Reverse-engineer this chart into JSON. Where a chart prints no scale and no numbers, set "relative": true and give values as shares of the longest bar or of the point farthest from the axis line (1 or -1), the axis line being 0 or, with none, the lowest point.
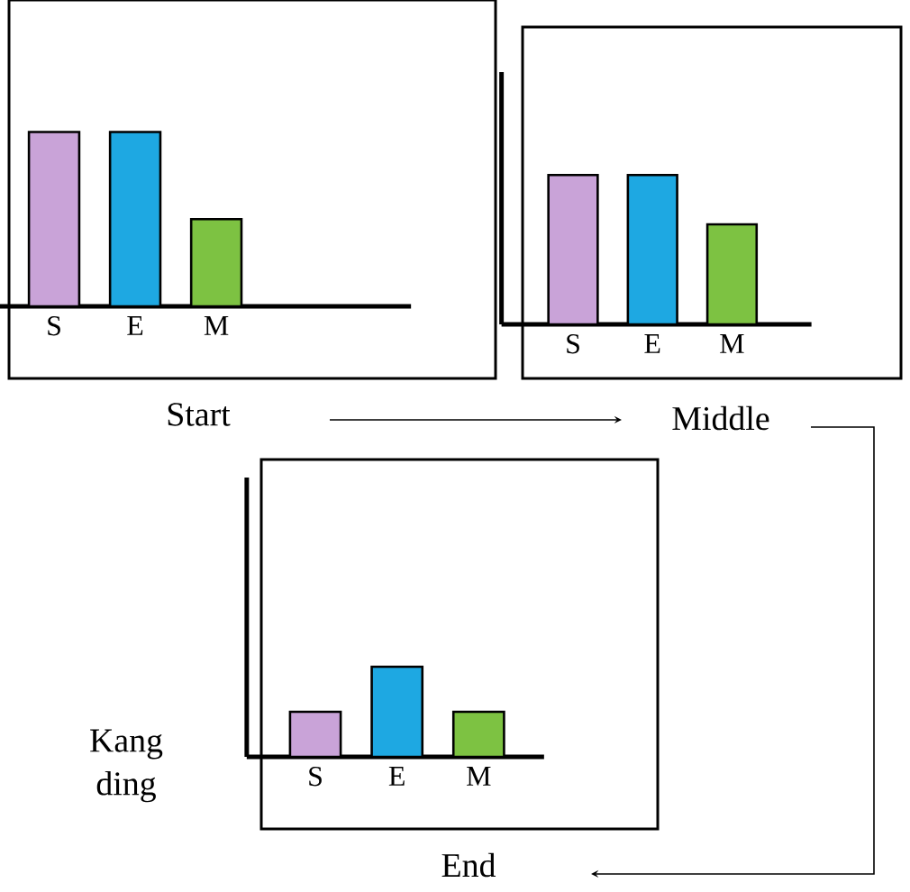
{
  "chart_data": [
    {
      "type": "bar",
      "relative": true,
      "xlabel": "Start",
      "categories": [
        "S",
        "E",
        "M"
      ],
      "values": [
        1,
        1,
        0.5
      ],
      "colors": [
        "#c9a3d8",
        "#1ea8e2",
        "#7dc242"
      ]
    },
    {
      "type": "bar",
      "relative": true,
      "xlabel": "Middle",
      "categories": [
        "S",
        "E",
        "M"
      ],
      "values": [
        1,
        1,
        0.67
      ],
      "colors": [
        "#c9a3d8",
        "#1ea8e2",
        "#7dc242"
      ]
    },
    {
      "type": "bar",
      "relative": true,
      "xlabel": "End",
      "annotations": [
        "Kang ding"
      ],
      "categories": [
        "S",
        "E",
        "M"
      ],
      "values": [
        0.5,
        1,
        0.5
      ],
      "colors": [
        "#c9a3d8",
        "#1ea8e2",
        "#7dc242"
      ]
    }
  ]
}
